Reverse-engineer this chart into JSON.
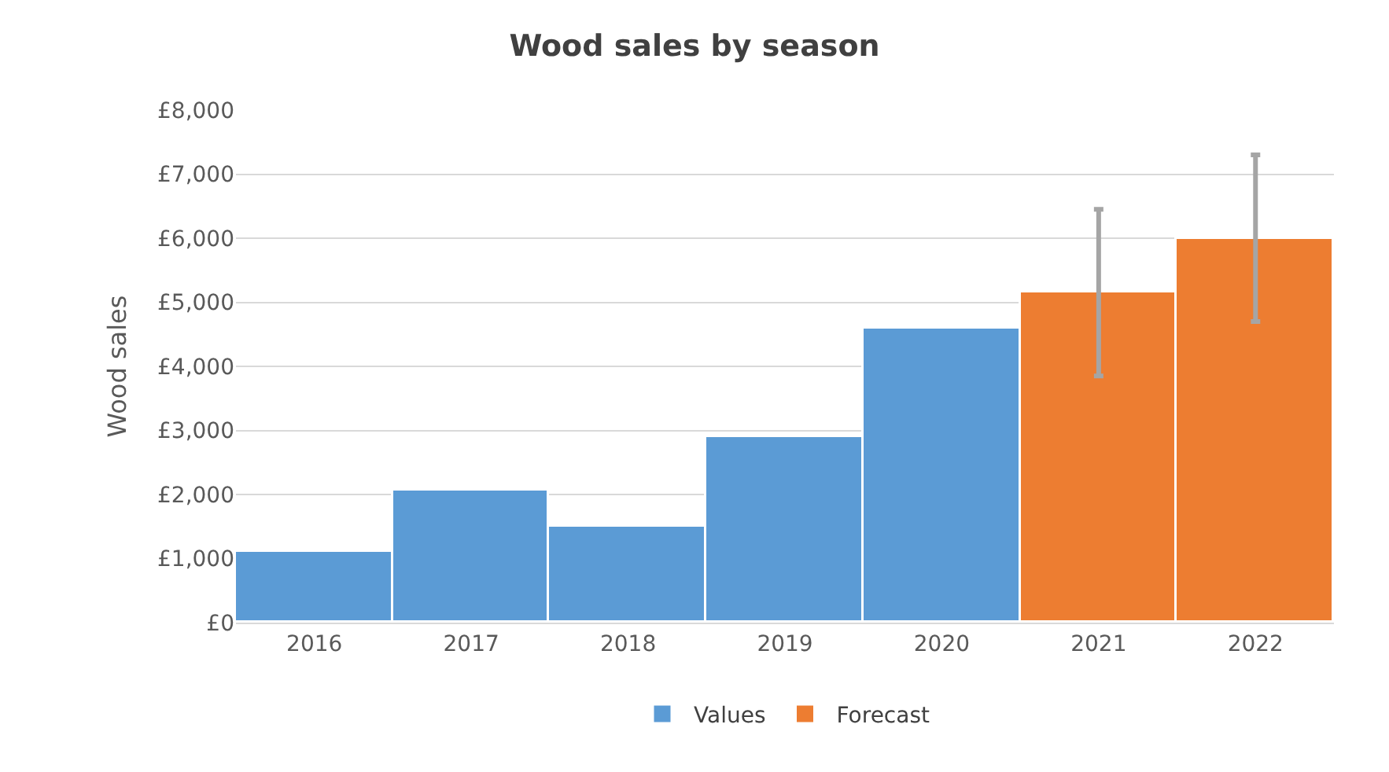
{
  "chart_data": {
    "type": "bar",
    "title": "Wood sales by season",
    "ylabel": "Wood sales",
    "categories": [
      "2016",
      "2017",
      "2018",
      "2019",
      "2020",
      "2021",
      "2022"
    ],
    "series": [
      {
        "name": "Values",
        "color": "#5b9bd5",
        "values": [
          1100,
          2050,
          1500,
          2900,
          4600,
          null,
          null
        ]
      },
      {
        "name": "Forecast",
        "color": "#ed7d31",
        "values": [
          null,
          null,
          null,
          null,
          null,
          5150,
          6000
        ],
        "errors": [
          null,
          null,
          null,
          null,
          null,
          1300,
          1300
        ]
      }
    ],
    "ylim": [
      0,
      8000
    ],
    "yticks": [
      {
        "value": 0,
        "label": "£0"
      },
      {
        "value": 1000,
        "label": "£1,000"
      },
      {
        "value": 2000,
        "label": "£2,000"
      },
      {
        "value": 3000,
        "label": "£3,000"
      },
      {
        "value": 4000,
        "label": "£4,000"
      },
      {
        "value": 5000,
        "label": "£5,000"
      },
      {
        "value": 6000,
        "label": "£6,000"
      },
      {
        "value": 7000,
        "label": "£7,000"
      },
      {
        "value": 8000,
        "label": "£8,000"
      }
    ],
    "grid": "y",
    "legend": "bottom"
  }
}
